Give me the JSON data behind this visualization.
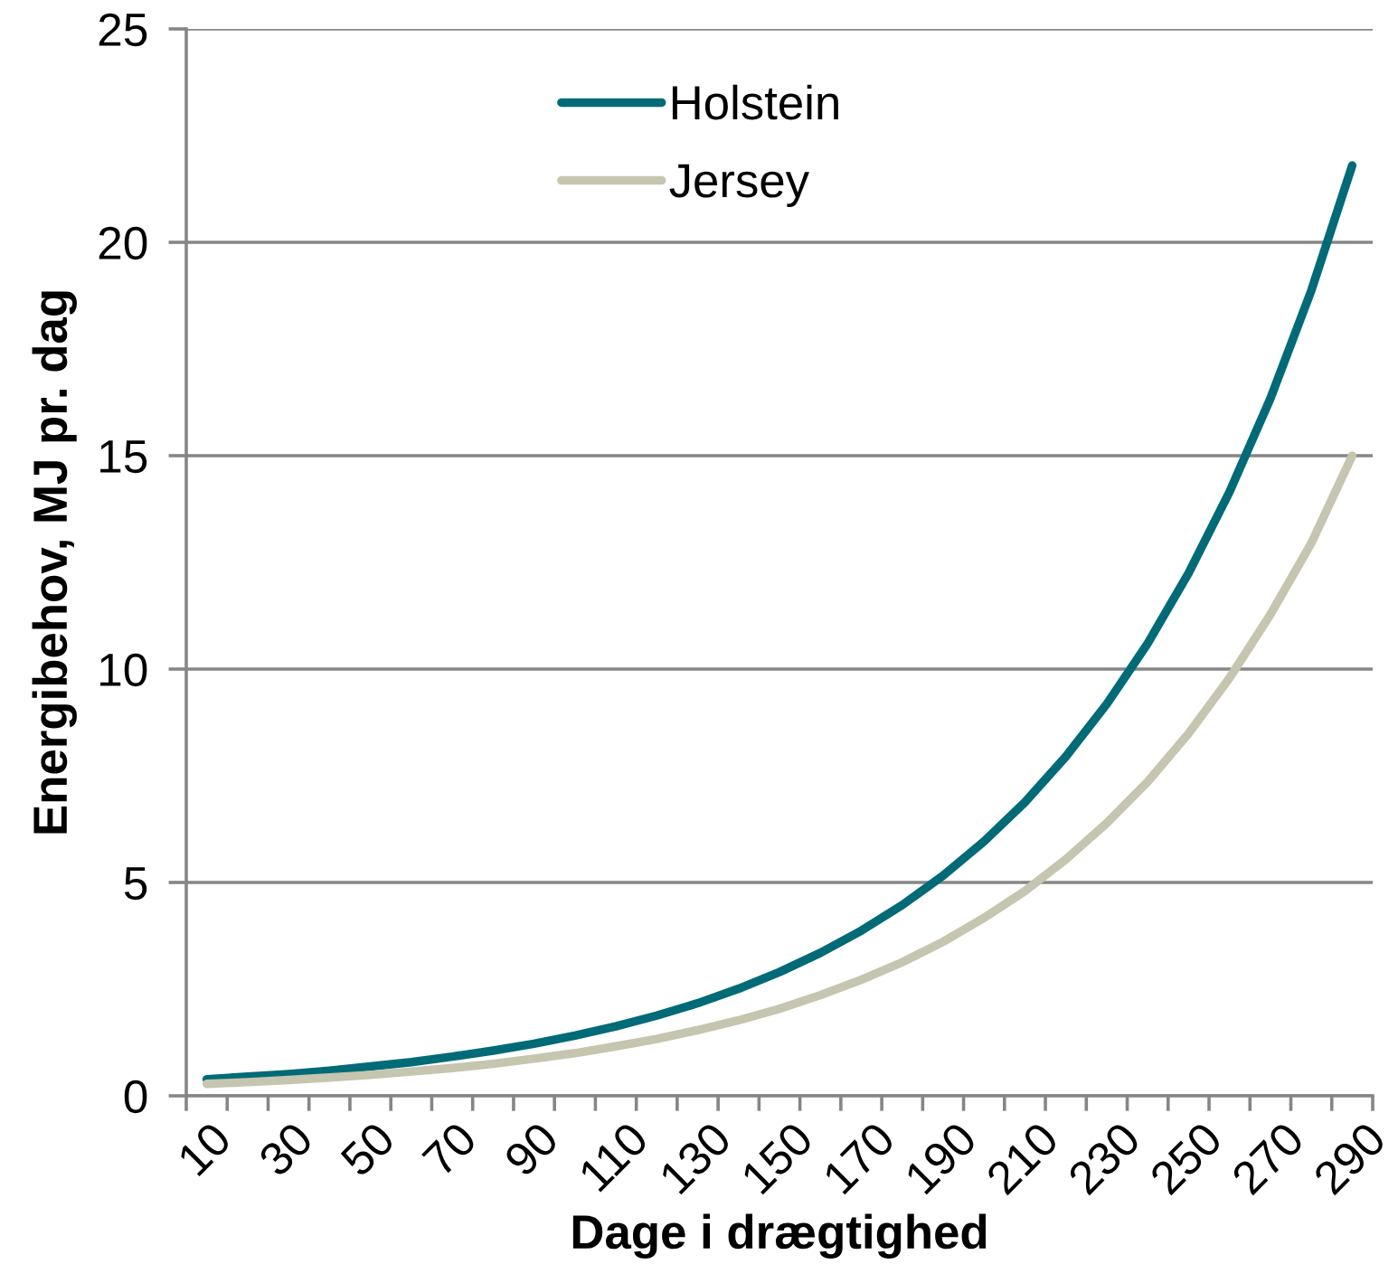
{
  "chart_data": {
    "type": "line",
    "xlabel": "Dage i drægtighed",
    "ylabel": "Energibehov, MJ pr. dag",
    "categories": [
      "10",
      null,
      "30",
      null,
      "50",
      null,
      "70",
      null,
      "90",
      null,
      "110",
      null,
      "130",
      null,
      "150",
      null,
      "170",
      null,
      "190",
      null,
      "210",
      null,
      "230",
      null,
      "250",
      null,
      "270",
      null,
      "290"
    ],
    "series": [
      {
        "name": "Holstein",
        "color": "#006b77",
        "values": [
          0.39,
          0.45,
          0.51,
          0.59,
          0.69,
          0.79,
          0.92,
          1.06,
          1.22,
          1.41,
          1.63,
          1.88,
          2.17,
          2.51,
          2.9,
          3.35,
          3.87,
          4.47,
          5.16,
          5.96,
          6.88,
          7.95,
          9.18,
          10.6,
          12.25,
          14.15,
          16.34,
          18.87,
          21.8
        ]
      },
      {
        "name": "Jersey",
        "color": "#c5c5b0",
        "values": [
          0.28,
          0.32,
          0.37,
          0.43,
          0.49,
          0.57,
          0.65,
          0.75,
          0.87,
          1.0,
          1.16,
          1.33,
          1.54,
          1.77,
          2.04,
          2.36,
          2.72,
          3.13,
          3.61,
          4.17,
          4.8,
          5.54,
          6.39,
          7.36,
          8.49,
          9.79,
          11.28,
          12.95,
          15.0
        ]
      }
    ],
    "ylim": [
      0,
      25
    ],
    "yticks": [
      0,
      5,
      10,
      15,
      20,
      25
    ],
    "grid": "y",
    "legend": "top"
  }
}
